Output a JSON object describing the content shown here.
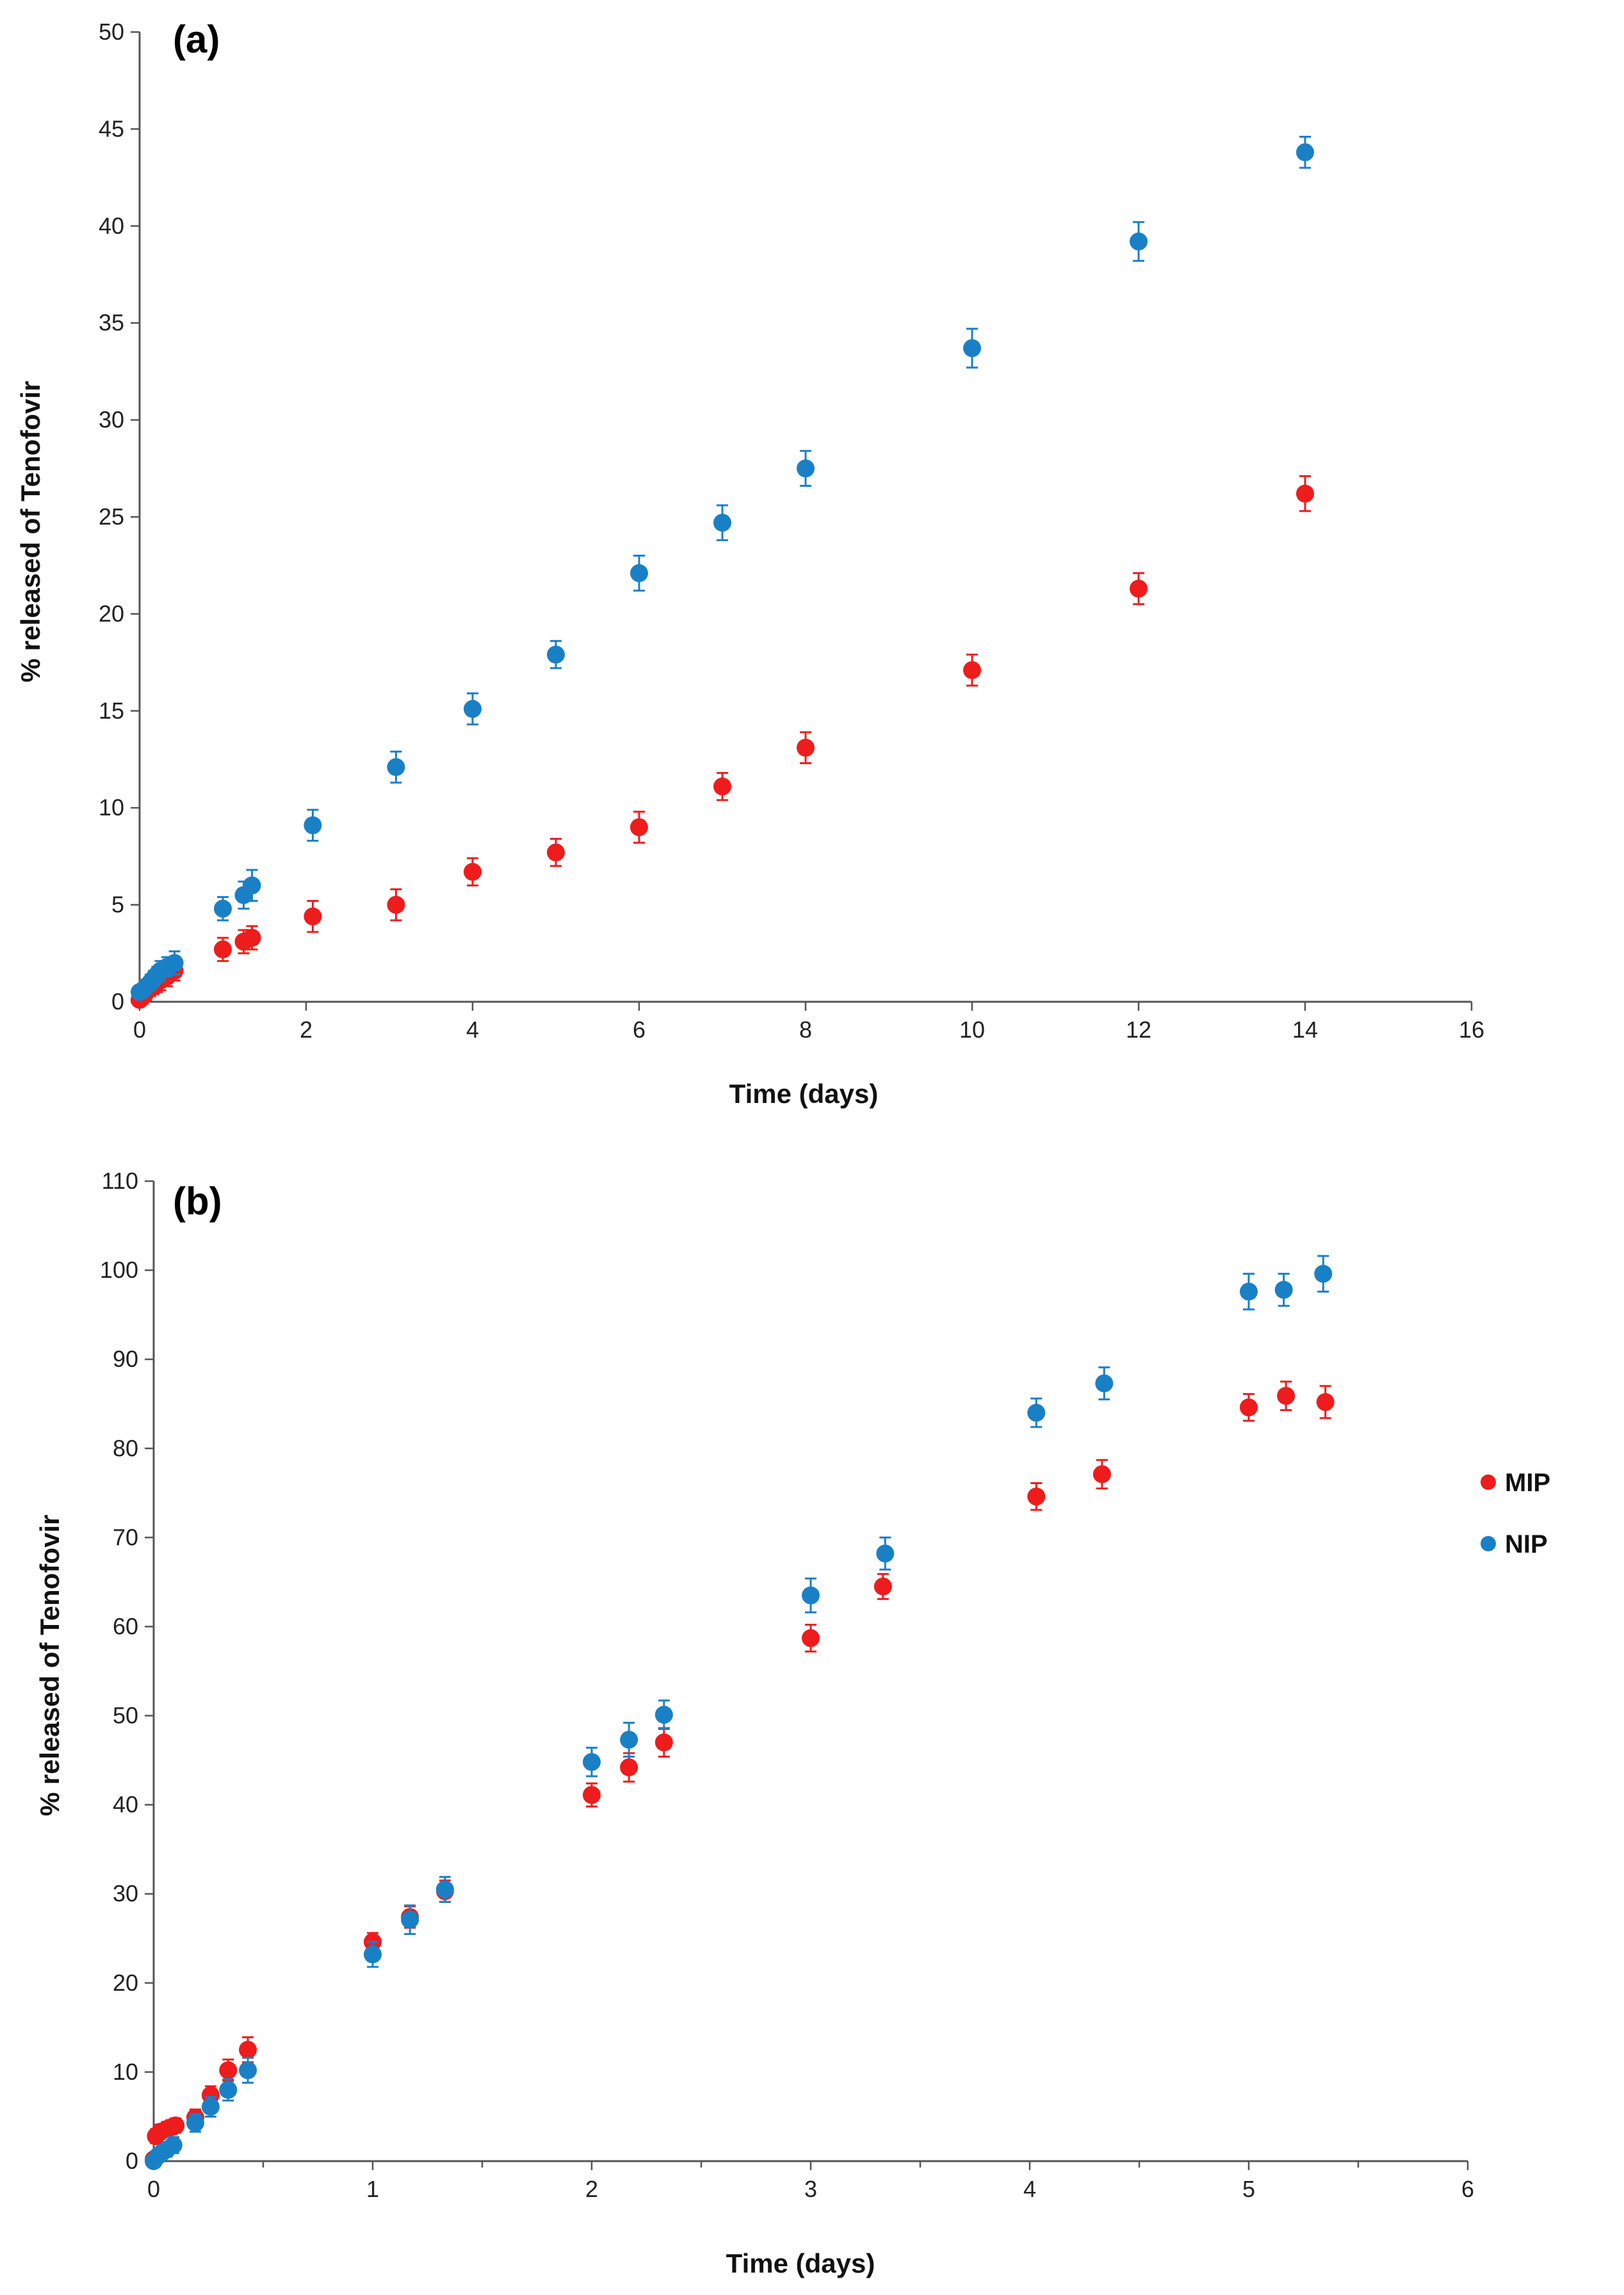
{
  "colors": {
    "MIP": "#ee1c1c",
    "NIP": "#1a80c6"
  },
  "legend": [
    {
      "name": "MIP",
      "label": "MIP"
    },
    {
      "name": "NIP",
      "label": "NIP"
    }
  ],
  "chart_data": [
    {
      "id": "a",
      "type": "scatter",
      "panel_label": "(a)",
      "xlabel": "Time (days)",
      "ylabel": "% released of Tenofovir",
      "xlim": [
        0,
        16
      ],
      "ylim": [
        0,
        50
      ],
      "xticks": [
        0,
        2,
        4,
        6,
        8,
        10,
        12,
        14,
        16
      ],
      "yticks": [
        0,
        5,
        10,
        15,
        20,
        25,
        30,
        35,
        40,
        45,
        50
      ],
      "series": [
        {
          "name": "MIP",
          "points": [
            {
              "x": 0,
              "y": 0.1,
              "err": 0.3
            },
            {
              "x": 0.04,
              "y": 0.3,
              "err": 0.4
            },
            {
              "x": 0.08,
              "y": 0.5,
              "err": 0.4
            },
            {
              "x": 0.13,
              "y": 0.7,
              "err": 0.4
            },
            {
              "x": 0.17,
              "y": 0.8,
              "err": 0.4
            },
            {
              "x": 0.21,
              "y": 1.0,
              "err": 0.5
            },
            {
              "x": 0.25,
              "y": 1.1,
              "err": 0.5
            },
            {
              "x": 0.33,
              "y": 1.3,
              "err": 0.5
            },
            {
              "x": 0.42,
              "y": 1.6,
              "err": 0.5
            },
            {
              "x": 1.0,
              "y": 2.7,
              "err": 0.6
            },
            {
              "x": 1.25,
              "y": 3.1,
              "err": 0.6
            },
            {
              "x": 1.35,
              "y": 3.3,
              "err": 0.6
            },
            {
              "x": 2.08,
              "y": 4.4,
              "err": 0.8
            },
            {
              "x": 3.08,
              "y": 5.0,
              "err": 0.8
            },
            {
              "x": 4.0,
              "y": 6.7,
              "err": 0.7
            },
            {
              "x": 5.0,
              "y": 7.7,
              "err": 0.7
            },
            {
              "x": 6.0,
              "y": 9.0,
              "err": 0.8
            },
            {
              "x": 7.0,
              "y": 11.1,
              "err": 0.7
            },
            {
              "x": 8.0,
              "y": 13.1,
              "err": 0.8
            },
            {
              "x": 10.0,
              "y": 17.1,
              "err": 0.8
            },
            {
              "x": 12.0,
              "y": 21.3,
              "err": 0.8
            },
            {
              "x": 14.0,
              "y": 26.2,
              "err": 0.9
            }
          ]
        },
        {
          "name": "NIP",
          "points": [
            {
              "x": 0,
              "y": 0.5,
              "err": 0.3
            },
            {
              "x": 0.04,
              "y": 0.6,
              "err": 0.3
            },
            {
              "x": 0.08,
              "y": 0.8,
              "err": 0.3
            },
            {
              "x": 0.13,
              "y": 1.0,
              "err": 0.4
            },
            {
              "x": 0.17,
              "y": 1.2,
              "err": 0.4
            },
            {
              "x": 0.21,
              "y": 1.4,
              "err": 0.4
            },
            {
              "x": 0.25,
              "y": 1.6,
              "err": 0.5
            },
            {
              "x": 0.33,
              "y": 1.8,
              "err": 0.5
            },
            {
              "x": 0.42,
              "y": 2.0,
              "err": 0.6
            },
            {
              "x": 1.0,
              "y": 4.8,
              "err": 0.6
            },
            {
              "x": 1.25,
              "y": 5.5,
              "err": 0.7
            },
            {
              "x": 1.35,
              "y": 6.0,
              "err": 0.8
            },
            {
              "x": 2.08,
              "y": 9.1,
              "err": 0.8
            },
            {
              "x": 3.08,
              "y": 12.1,
              "err": 0.8
            },
            {
              "x": 4.0,
              "y": 15.1,
              "err": 0.8
            },
            {
              "x": 5.0,
              "y": 17.9,
              "err": 0.7
            },
            {
              "x": 6.0,
              "y": 22.1,
              "err": 0.9
            },
            {
              "x": 7.0,
              "y": 24.7,
              "err": 0.9
            },
            {
              "x": 8.0,
              "y": 27.5,
              "err": 0.9
            },
            {
              "x": 10.0,
              "y": 33.7,
              "err": 1.0
            },
            {
              "x": 12.0,
              "y": 39.2,
              "err": 1.0
            },
            {
              "x": 14.0,
              "y": 43.8,
              "err": 0.8
            }
          ]
        }
      ]
    },
    {
      "id": "b",
      "type": "scatter",
      "panel_label": "(b)",
      "xlabel": "Time (days)",
      "ylabel": "% released of Tenofovir",
      "xlim": [
        0,
        6
      ],
      "ylim": [
        0,
        110
      ],
      "xticks": [
        0,
        1,
        2,
        3,
        4,
        5,
        6
      ],
      "yticks": [
        0,
        10,
        20,
        30,
        40,
        50,
        60,
        70,
        80,
        90,
        100,
        110
      ],
      "xminor_step": 0.5,
      "series": [
        {
          "name": "MIP",
          "points": [
            {
              "x": 0,
              "y": 0.2,
              "err": 0.5
            },
            {
              "x": 0.01,
              "y": 2.8,
              "err": 0.8
            },
            {
              "x": 0.03,
              "y": 3.3,
              "err": 0.8
            },
            {
              "x": 0.06,
              "y": 3.6,
              "err": 0.8
            },
            {
              "x": 0.08,
              "y": 3.8,
              "err": 0.8
            },
            {
              "x": 0.1,
              "y": 4.0,
              "err": 0.8
            },
            {
              "x": 0.19,
              "y": 4.9,
              "err": 0.9
            },
            {
              "x": 0.26,
              "y": 7.4,
              "err": 1.0
            },
            {
              "x": 0.34,
              "y": 10.2,
              "err": 1.2
            },
            {
              "x": 0.43,
              "y": 12.5,
              "err": 1.4
            },
            {
              "x": 1.0,
              "y": 24.6,
              "err": 1.0
            },
            {
              "x": 1.17,
              "y": 27.4,
              "err": 1.2
            },
            {
              "x": 1.33,
              "y": 30.3,
              "err": 1.2
            },
            {
              "x": 2.0,
              "y": 41.1,
              "err": 1.3
            },
            {
              "x": 2.17,
              "y": 44.2,
              "err": 1.6
            },
            {
              "x": 2.33,
              "y": 47.0,
              "err": 1.6
            },
            {
              "x": 3.0,
              "y": 58.7,
              "err": 1.5
            },
            {
              "x": 3.33,
              "y": 64.5,
              "err": 1.4
            },
            {
              "x": 4.03,
              "y": 74.6,
              "err": 1.5
            },
            {
              "x": 4.33,
              "y": 77.1,
              "err": 1.6
            },
            {
              "x": 5.0,
              "y": 84.6,
              "err": 1.5
            },
            {
              "x": 5.17,
              "y": 85.9,
              "err": 1.6
            },
            {
              "x": 5.35,
              "y": 85.2,
              "err": 1.8
            }
          ]
        },
        {
          "name": "NIP",
          "points": [
            {
              "x": 0,
              "y": 0.0,
              "err": 0.5
            },
            {
              "x": 0.02,
              "y": 0.6,
              "err": 0.6
            },
            {
              "x": 0.04,
              "y": 1.0,
              "err": 0.7
            },
            {
              "x": 0.06,
              "y": 1.3,
              "err": 0.8
            },
            {
              "x": 0.09,
              "y": 1.8,
              "err": 0.9
            },
            {
              "x": 0.19,
              "y": 4.3,
              "err": 1.0
            },
            {
              "x": 0.26,
              "y": 6.1,
              "err": 1.1
            },
            {
              "x": 0.34,
              "y": 8.0,
              "err": 1.2
            },
            {
              "x": 0.43,
              "y": 10.2,
              "err": 1.4
            },
            {
              "x": 1.0,
              "y": 23.2,
              "err": 1.4
            },
            {
              "x": 1.17,
              "y": 27.1,
              "err": 1.6
            },
            {
              "x": 1.33,
              "y": 30.5,
              "err": 1.4
            },
            {
              "x": 2.0,
              "y": 44.8,
              "err": 1.6
            },
            {
              "x": 2.17,
              "y": 47.3,
              "err": 1.9
            },
            {
              "x": 2.33,
              "y": 50.1,
              "err": 1.6
            },
            {
              "x": 3.0,
              "y": 63.5,
              "err": 1.9
            },
            {
              "x": 3.34,
              "y": 68.2,
              "err": 1.8
            },
            {
              "x": 4.03,
              "y": 84.0,
              "err": 1.6
            },
            {
              "x": 4.34,
              "y": 87.3,
              "err": 1.8
            },
            {
              "x": 5.0,
              "y": 97.6,
              "err": 2.0
            },
            {
              "x": 5.16,
              "y": 97.8,
              "err": 1.8
            },
            {
              "x": 5.34,
              "y": 99.6,
              "err": 2.0
            }
          ]
        }
      ]
    }
  ]
}
